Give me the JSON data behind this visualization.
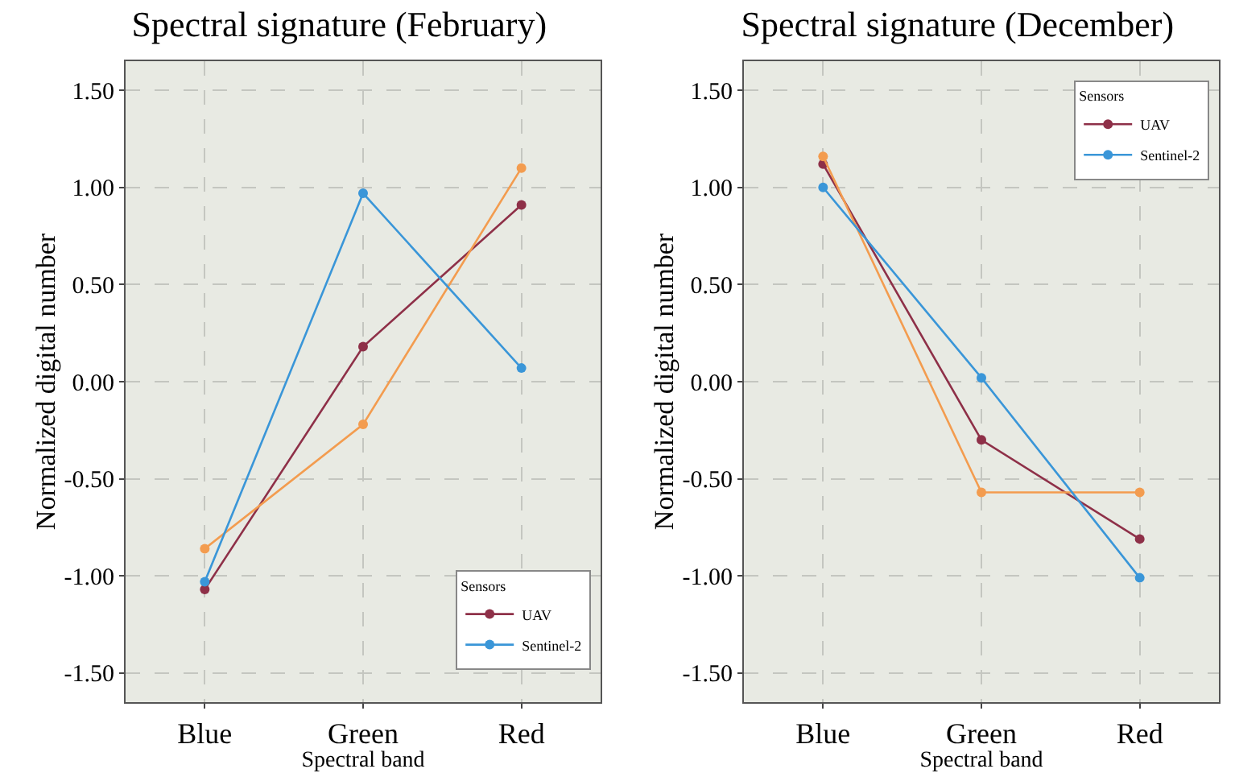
{
  "chart_data": [
    {
      "type": "line",
      "title": "Spectral signature (February)",
      "xlabel": "Spectral band",
      "ylabel": "Normalized digital number",
      "categories": [
        "Blue",
        "Green",
        "Red"
      ],
      "ylim": [
        -1.65,
        1.65
      ],
      "yticks": [
        {
          "value": -1.5,
          "label": "-1.50"
        },
        {
          "value": -1,
          "label": "-1.00"
        },
        {
          "value": -0.5,
          "label": "-0.50"
        },
        {
          "value": 0,
          "label": "0.00"
        },
        {
          "value": 0.5,
          "label": "0.50"
        },
        {
          "value": 1,
          "label": "1.00"
        },
        {
          "value": 1.5,
          "label": "1.50"
        }
      ],
      "grid": true,
      "legend": "bottom right",
      "legend_title": "Sensors",
      "marker": "circle",
      "line_style": "solid",
      "series": [
        {
          "name": "UAV",
          "color": "#8e3048",
          "values": [
            -1.07,
            0.18,
            0.91
          ]
        },
        {
          "color": "#f39c4f",
          "values": [
            -0.86,
            -0.22,
            1.1
          ]
        },
        {
          "name": "Sentinel-2",
          "color": "#3a96d8",
          "values": [
            -1.03,
            0.97,
            0.07
          ]
        }
      ]
    },
    {
      "type": "line",
      "title": "Spectral signature (December)",
      "xlabel": "Spectral band",
      "ylabel": "Normalized digital number",
      "categories": [
        "Blue",
        "Green",
        "Red"
      ],
      "ylim": [
        -1.65,
        1.65
      ],
      "yticks": [
        {
          "value": -1.5,
          "label": "-1.50"
        },
        {
          "value": -1,
          "label": "-1.00"
        },
        {
          "value": -0.5,
          "label": "-0.50"
        },
        {
          "value": 0,
          "label": "0.00"
        },
        {
          "value": 0.5,
          "label": "0.50"
        },
        {
          "value": 1,
          "label": "1.00"
        },
        {
          "value": 1.5,
          "label": "1.50"
        }
      ],
      "grid": true,
      "legend": "top right",
      "legend_title": "Sensors",
      "marker": "circle",
      "line_style": "solid",
      "series": [
        {
          "name": "UAV",
          "color": "#8e3048",
          "values": [
            1.12,
            -0.3,
            -0.81
          ]
        },
        {
          "color": "#f39c4f",
          "values": [
            1.16,
            -0.57,
            -0.57
          ]
        },
        {
          "name": "Sentinel-2",
          "color": "#3a96d8",
          "values": [
            1.0,
            0.02,
            -1.01
          ]
        }
      ]
    }
  ]
}
